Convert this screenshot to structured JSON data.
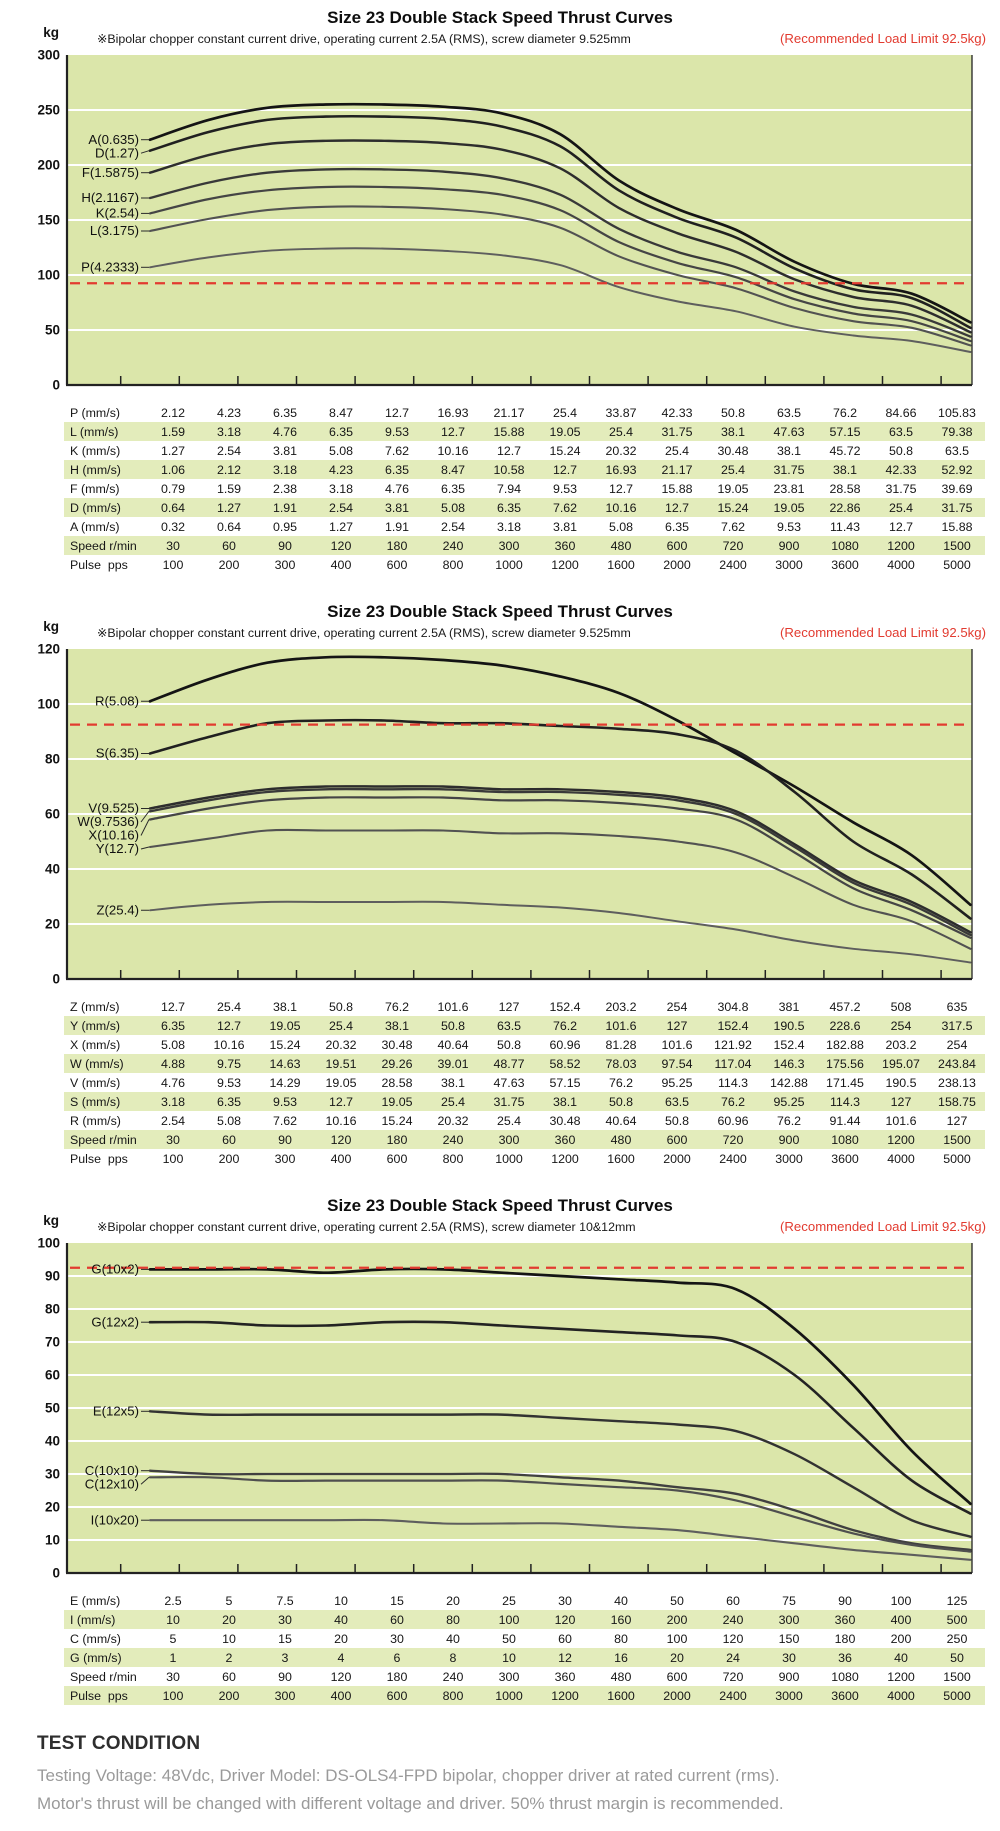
{
  "colors": {
    "plot_bg": "#dbe6aa",
    "row_stripe": "#e3ecbb",
    "limit_red": "#e23b30",
    "grid": "#ffffff",
    "axis": "#222222",
    "curve_dark": "#141414",
    "curve_light": "#5e5e5e"
  },
  "chart_data": [
    {
      "type": "line",
      "title": "Size 23 Double Stack Speed Thrust Curves",
      "note": "※Bipolar chopper constant current drive, operating current 2.5A (RMS), screw diameter 9.525mm",
      "annotation": "(Recommended Load Limit 92.5kg)",
      "unit": "kg",
      "ylim": [
        0,
        300
      ],
      "ytick": 50,
      "load_limit": 92.5,
      "speeds_rmin": [
        30,
        60,
        90,
        120,
        180,
        240,
        300,
        360,
        480,
        600,
        720,
        900,
        1080,
        1200,
        1500
      ],
      "series": [
        {
          "name": "A(0.635)",
          "values": [
            223,
            241,
            252,
            255,
            255,
            253,
            247,
            228,
            186,
            160,
            141,
            112,
            92,
            83,
            57
          ]
        },
        {
          "name": "D(1.27)",
          "values": [
            213,
            230,
            241,
            244,
            244,
            242,
            235,
            217,
            177,
            152,
            134,
            106,
            87,
            79,
            52
          ]
        },
        {
          "name": "F(1.5875)",
          "values": [
            193,
            209,
            219,
            222,
            222,
            220,
            214,
            197,
            161,
            138,
            121,
            96,
            80,
            72,
            48
          ]
        },
        {
          "name": "H(2.1167)",
          "values": [
            170,
            184,
            193,
            196,
            196,
            194,
            188,
            173,
            142,
            121,
            107,
            85,
            71,
            64,
            44
          ]
        },
        {
          "name": "K(2.54)",
          "values": [
            156,
            169,
            177,
            180,
            180,
            178,
            173,
            159,
            130,
            111,
            98,
            78,
            65,
            58,
            40
          ]
        },
        {
          "name": "L(3.175)",
          "values": [
            140,
            151,
            159,
            162,
            162,
            160,
            155,
            143,
            117,
            100,
            88,
            70,
            58,
            52,
            36
          ]
        },
        {
          "name": "P(4.2333)",
          "values": [
            107,
            116,
            122,
            124,
            124,
            122,
            118,
            109,
            89,
            76,
            67,
            53,
            45,
            40,
            30
          ]
        }
      ],
      "table": {
        "rows": [
          {
            "label": "P (mm/s)",
            "values": [
              "2.12",
              "4.23",
              "6.35",
              "8.47",
              "12.7",
              "16.93",
              "21.17",
              "25.4",
              "33.87",
              "42.33",
              "50.8",
              "63.5",
              "76.2",
              "84.66",
              "105.83"
            ]
          },
          {
            "label": "L (mm/s)",
            "values": [
              "1.59",
              "3.18",
              "4.76",
              "6.35",
              "9.53",
              "12.7",
              "15.88",
              "19.05",
              "25.4",
              "31.75",
              "38.1",
              "47.63",
              "57.15",
              "63.5",
              "79.38"
            ]
          },
          {
            "label": "K (mm/s)",
            "values": [
              "1.27",
              "2.54",
              "3.81",
              "5.08",
              "7.62",
              "10.16",
              "12.7",
              "15.24",
              "20.32",
              "25.4",
              "30.48",
              "38.1",
              "45.72",
              "50.8",
              "63.5"
            ]
          },
          {
            "label": "H (mm/s)",
            "values": [
              "1.06",
              "2.12",
              "3.18",
              "4.23",
              "6.35",
              "8.47",
              "10.58",
              "12.7",
              "16.93",
              "21.17",
              "25.4",
              "31.75",
              "38.1",
              "42.33",
              "52.92"
            ]
          },
          {
            "label": "F (mm/s)",
            "values": [
              "0.79",
              "1.59",
              "2.38",
              "3.18",
              "4.76",
              "6.35",
              "7.94",
              "9.53",
              "12.7",
              "15.88",
              "19.05",
              "23.81",
              "28.58",
              "31.75",
              "39.69"
            ]
          },
          {
            "label": "D (mm/s)",
            "values": [
              "0.64",
              "1.27",
              "1.91",
              "2.54",
              "3.81",
              "5.08",
              "6.35",
              "7.62",
              "10.16",
              "12.7",
              "15.24",
              "19.05",
              "22.86",
              "25.4",
              "31.75"
            ]
          },
          {
            "label": "A (mm/s)",
            "values": [
              "0.32",
              "0.64",
              "0.95",
              "1.27",
              "1.91",
              "2.54",
              "3.18",
              "3.81",
              "5.08",
              "6.35",
              "7.62",
              "9.53",
              "11.43",
              "12.7",
              "15.88"
            ]
          },
          {
            "label": "Speed r/min",
            "values": [
              "30",
              "60",
              "90",
              "120",
              "180",
              "240",
              "300",
              "360",
              "480",
              "600",
              "720",
              "900",
              "1080",
              "1200",
              "1500"
            ]
          },
          {
            "label": "Pulse  pps",
            "values": [
              "100",
              "200",
              "300",
              "400",
              "600",
              "800",
              "1000",
              "1200",
              "1600",
              "2000",
              "2400",
              "3000",
              "3600",
              "4000",
              "5000"
            ]
          }
        ]
      }
    },
    {
      "type": "line",
      "title": "Size 23 Double Stack Speed Thrust Curves",
      "note": "※Bipolar chopper constant current drive, operating current 2.5A (RMS), screw diameter 9.525mm",
      "annotation": "(Recommended Load Limit 92.5kg)",
      "unit": "kg",
      "ylim": [
        0,
        120
      ],
      "ytick": 20,
      "load_limit": 92.5,
      "speeds_rmin": [
        30,
        60,
        90,
        120,
        180,
        240,
        300,
        360,
        480,
        600,
        720,
        900,
        1080,
        1200,
        1500
      ],
      "series": [
        {
          "name": "R(5.08)",
          "values": [
            101,
            109,
            115,
            117,
            117,
            116,
            114,
            110,
            104,
            94,
            82,
            70,
            57,
            45,
            27
          ]
        },
        {
          "name": "S(6.35)",
          "values": [
            82,
            88,
            93,
            94,
            94,
            93,
            93,
            92,
            91,
            89,
            83,
            68,
            50,
            38,
            22
          ]
        },
        {
          "name": "V(9.525)",
          "values": [
            62,
            66,
            69,
            70,
            70,
            70,
            69,
            69,
            68,
            66,
            61,
            49,
            36,
            28,
            17
          ]
        },
        {
          "name": "W(9.7536)",
          "values": [
            61,
            65,
            68,
            69,
            69,
            69,
            68,
            68,
            67,
            65,
            60,
            48,
            35,
            27,
            16
          ]
        },
        {
          "name": "X(10.16)",
          "values": [
            58,
            62,
            65,
            66,
            66,
            66,
            65,
            65,
            64,
            62,
            58,
            46,
            33,
            25,
            15
          ]
        },
        {
          "name": "Y(12.7)",
          "values": [
            48,
            51,
            54,
            54,
            54,
            54,
            53,
            53,
            52,
            50,
            46,
            37,
            27,
            21,
            11
          ]
        },
        {
          "name": "Z(25.4)",
          "values": [
            25,
            27,
            28,
            28,
            28,
            28,
            27,
            26,
            24,
            21,
            18,
            14,
            11,
            9,
            6
          ]
        }
      ],
      "table": {
        "rows": [
          {
            "label": "Z (mm/s)",
            "values": [
              "12.7",
              "25.4",
              "38.1",
              "50.8",
              "76.2",
              "101.6",
              "127",
              "152.4",
              "203.2",
              "254",
              "304.8",
              "381",
              "457.2",
              "508",
              "635"
            ]
          },
          {
            "label": "Y (mm/s)",
            "values": [
              "6.35",
              "12.7",
              "19.05",
              "25.4",
              "38.1",
              "50.8",
              "63.5",
              "76.2",
              "101.6",
              "127",
              "152.4",
              "190.5",
              "228.6",
              "254",
              "317.5"
            ]
          },
          {
            "label": "X (mm/s)",
            "values": [
              "5.08",
              "10.16",
              "15.24",
              "20.32",
              "30.48",
              "40.64",
              "50.8",
              "60.96",
              "81.28",
              "101.6",
              "121.92",
              "152.4",
              "182.88",
              "203.2",
              "254"
            ]
          },
          {
            "label": "W (mm/s)",
            "values": [
              "4.88",
              "9.75",
              "14.63",
              "19.51",
              "29.26",
              "39.01",
              "48.77",
              "58.52",
              "78.03",
              "97.54",
              "117.04",
              "146.3",
              "175.56",
              "195.07",
              "243.84"
            ]
          },
          {
            "label": "V (mm/s)",
            "values": [
              "4.76",
              "9.53",
              "14.29",
              "19.05",
              "28.58",
              "38.1",
              "47.63",
              "57.15",
              "76.2",
              "95.25",
              "114.3",
              "142.88",
              "171.45",
              "190.5",
              "238.13"
            ]
          },
          {
            "label": "S (mm/s)",
            "values": [
              "3.18",
              "6.35",
              "9.53",
              "12.7",
              "19.05",
              "25.4",
              "31.75",
              "38.1",
              "50.8",
              "63.5",
              "76.2",
              "95.25",
              "114.3",
              "127",
              "158.75"
            ]
          },
          {
            "label": "R (mm/s)",
            "values": [
              "2.54",
              "5.08",
              "7.62",
              "10.16",
              "15.24",
              "20.32",
              "25.4",
              "30.48",
              "40.64",
              "50.8",
              "60.96",
              "76.2",
              "91.44",
              "101.6",
              "127"
            ]
          },
          {
            "label": "Speed r/min",
            "values": [
              "30",
              "60",
              "90",
              "120",
              "180",
              "240",
              "300",
              "360",
              "480",
              "600",
              "720",
              "900",
              "1080",
              "1200",
              "1500"
            ]
          },
          {
            "label": "Pulse  pps",
            "values": [
              "100",
              "200",
              "300",
              "400",
              "600",
              "800",
              "1000",
              "1200",
              "1600",
              "2000",
              "2400",
              "3000",
              "3600",
              "4000",
              "5000"
            ]
          }
        ]
      }
    },
    {
      "type": "line",
      "title": "Size 23 Double Stack Speed Thrust Curves",
      "note": "※Bipolar chopper constant current drive, operating current 2.5A (RMS), screw diameter 10&12mm",
      "annotation": "(Recommended Load Limit 92.5kg)",
      "unit": "kg",
      "ylim": [
        0,
        100
      ],
      "ytick": 10,
      "load_limit": 92.5,
      "speeds_rmin": [
        30,
        60,
        90,
        120,
        180,
        240,
        300,
        360,
        480,
        600,
        720,
        900,
        1080,
        1200,
        1500
      ],
      "series": [
        {
          "name": "G(10x2)",
          "values": [
            92,
            92,
            92,
            91,
            92,
            92,
            91,
            90,
            89,
            88,
            86,
            74,
            57,
            37,
            21
          ]
        },
        {
          "name": "G(12x2)",
          "values": [
            76,
            76,
            75,
            75,
            76,
            76,
            75,
            74,
            73,
            72,
            70,
            60,
            44,
            28,
            18
          ]
        },
        {
          "name": "E(12x5)",
          "values": [
            49,
            48,
            48,
            48,
            48,
            48,
            48,
            47,
            46,
            45,
            43,
            36,
            26,
            16,
            11
          ]
        },
        {
          "name": "C(10x10)",
          "values": [
            31,
            30,
            30,
            30,
            30,
            30,
            30,
            29,
            28,
            26,
            24,
            19,
            13,
            9,
            7
          ]
        },
        {
          "name": "C(12x10)",
          "values": [
            29,
            29,
            28,
            28,
            28,
            28,
            28,
            27,
            26,
            25,
            22,
            17,
            12,
            8.5,
            6.5
          ]
        },
        {
          "name": "I(10x20)",
          "values": [
            16,
            16,
            16,
            16,
            16,
            15,
            15,
            15,
            14,
            13,
            11,
            9,
            7,
            5.5,
            4
          ]
        }
      ],
      "table": {
        "rows": [
          {
            "label": "E (mm/s)",
            "values": [
              "2.5",
              "5",
              "7.5",
              "10",
              "15",
              "20",
              "25",
              "30",
              "40",
              "50",
              "60",
              "75",
              "90",
              "100",
              "125"
            ]
          },
          {
            "label": "I (mm/s)",
            "values": [
              "10",
              "20",
              "30",
              "40",
              "60",
              "80",
              "100",
              "120",
              "160",
              "200",
              "240",
              "300",
              "360",
              "400",
              "500"
            ]
          },
          {
            "label": "C (mm/s)",
            "values": [
              "5",
              "10",
              "15",
              "20",
              "30",
              "40",
              "50",
              "60",
              "80",
              "100",
              "120",
              "150",
              "180",
              "200",
              "250"
            ]
          },
          {
            "label": "G (mm/s)",
            "values": [
              "1",
              "2",
              "3",
              "4",
              "6",
              "8",
              "10",
              "12",
              "16",
              "20",
              "24",
              "30",
              "36",
              "40",
              "50"
            ]
          },
          {
            "label": "Speed r/min",
            "values": [
              "30",
              "60",
              "90",
              "120",
              "180",
              "240",
              "300",
              "360",
              "480",
              "600",
              "720",
              "900",
              "1080",
              "1200",
              "1500"
            ]
          },
          {
            "label": "Pulse  pps",
            "values": [
              "100",
              "200",
              "300",
              "400",
              "600",
              "800",
              "1000",
              "1200",
              "1600",
              "2000",
              "2400",
              "3000",
              "3600",
              "4000",
              "5000"
            ]
          }
        ]
      }
    }
  ],
  "footer": {
    "heading": "TEST CONDITION",
    "line1": "Testing Voltage: 48Vdc, Driver Model: DS-OLS4-FPD bipolar, chopper driver at rated current (rms).",
    "line2": "Motor's thrust will be changed with different voltage and driver. 50% thrust margin is recommended."
  }
}
